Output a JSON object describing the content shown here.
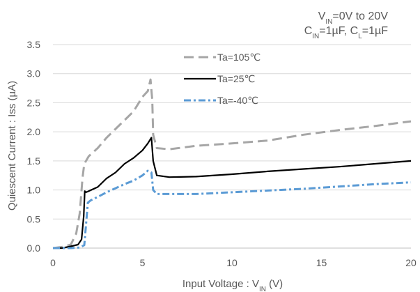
{
  "chart_data": {
    "type": "line",
    "conditions": {
      "line1": {
        "main": "V",
        "sub": "IN",
        "rest": "=0V to 20V"
      },
      "line2": {
        "a": "C",
        "a_sub": "IN",
        "a_rest": "=1µF, ",
        "b": "C",
        "b_sub": "L",
        "b_rest": "=1µF"
      }
    },
    "xlabel": {
      "main": "Input Voltage : V",
      "sub": "IN",
      "rest": " (V)"
    },
    "ylabel": "Quiescent Current : Iss (µA)",
    "xlim": [
      0,
      20
    ],
    "ylim": [
      0,
      3.5
    ],
    "xticks": [
      "0",
      "5",
      "10",
      "15",
      "20"
    ],
    "yticks": [
      "0.0",
      "0.5",
      "1.0",
      "1.5",
      "2.0",
      "2.5",
      "3.0",
      "3.5"
    ],
    "grid": "horizontal",
    "legend_position": "top-center",
    "series": [
      {
        "name": "Ta=105℃",
        "color": "#a6a6a6",
        "dash": "long-dash",
        "x": [
          0,
          0.5,
          1.0,
          1.3,
          1.5,
          1.65,
          1.75,
          1.85,
          2.0,
          2.5,
          3.0,
          3.5,
          4.0,
          4.5,
          5.0,
          5.3,
          5.45,
          5.55,
          5.6,
          5.8,
          6.5,
          8,
          10,
          12,
          14,
          16,
          18,
          20
        ],
        "y": [
          0,
          0.02,
          0.06,
          0.25,
          0.6,
          1.2,
          1.45,
          1.5,
          1.58,
          1.72,
          1.9,
          2.05,
          2.2,
          2.35,
          2.6,
          2.7,
          2.9,
          2.55,
          1.95,
          1.72,
          1.7,
          1.76,
          1.8,
          1.85,
          1.95,
          2.03,
          2.1,
          2.18
        ]
      },
      {
        "name": "Ta=25℃",
        "color": "#000000",
        "dash": "solid",
        "x": [
          0,
          0.5,
          1.0,
          1.4,
          1.6,
          1.72,
          1.78,
          1.85,
          2.0,
          2.5,
          3.0,
          3.5,
          4.0,
          4.5,
          5.0,
          5.3,
          5.5,
          5.6,
          5.8,
          6.5,
          8,
          10,
          12,
          14,
          16,
          18,
          20
        ],
        "y": [
          0,
          0.0,
          0.03,
          0.06,
          0.15,
          0.55,
          0.98,
          0.96,
          0.98,
          1.05,
          1.2,
          1.3,
          1.45,
          1.55,
          1.68,
          1.8,
          1.9,
          1.5,
          1.25,
          1.22,
          1.23,
          1.27,
          1.32,
          1.36,
          1.4,
          1.45,
          1.5
        ]
      },
      {
        "name": "Ta=-40℃",
        "color": "#5b9bd5",
        "dash": "dash-dot",
        "x": [
          0,
          0.5,
          1.0,
          1.5,
          1.75,
          1.85,
          1.95,
          2.1,
          2.5,
          3.0,
          3.5,
          4.0,
          4.5,
          5.0,
          5.3,
          5.5,
          5.6,
          5.8,
          6.5,
          8,
          10,
          12,
          14,
          16,
          18,
          20
        ],
        "y": [
          0,
          0.0,
          0.0,
          0.01,
          0.05,
          0.4,
          0.78,
          0.82,
          0.88,
          0.96,
          1.03,
          1.1,
          1.16,
          1.25,
          1.33,
          1.3,
          1.0,
          0.93,
          0.93,
          0.93,
          0.96,
          0.99,
          1.02,
          1.06,
          1.1,
          1.13
        ]
      }
    ]
  }
}
